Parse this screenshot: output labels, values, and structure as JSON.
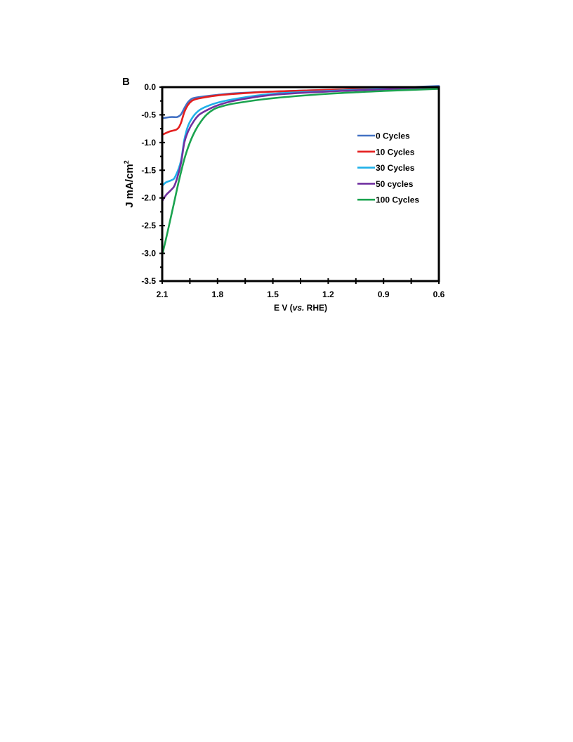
{
  "panel_label": "B",
  "chart_data": {
    "type": "line",
    "title": "",
    "xlabel": "E  V (vs. RHE)",
    "xlabel_parts": {
      "pre": "E  V (",
      "italic": "vs.",
      "post": " RHE)"
    },
    "ylabel": "J mA/cm²",
    "ylabel_parts": {
      "main": "J mA/cm",
      "sup": "2"
    },
    "x_reversed": true,
    "xlim": [
      2.1,
      0.6
    ],
    "ylim": [
      -3.5,
      0.0
    ],
    "x_ticks": [
      "2.1",
      "1.8",
      "1.5",
      "1.2",
      "0.9",
      "0.6"
    ],
    "y_ticks": [
      "0.0",
      "-0.5",
      "-1.0",
      "-1.5",
      "-2.0",
      "-2.5",
      "-3.0",
      "-3.5"
    ],
    "legend_position": "right",
    "series": [
      {
        "name": "0 Cycles",
        "color": "#4472C4",
        "x": [
          2.1,
          2.05,
          2.02,
          2.0,
          1.98,
          1.96,
          1.94,
          1.92,
          1.88,
          1.8,
          1.7,
          1.5,
          1.2,
          0.9,
          0.6
        ],
        "y": [
          -0.56,
          -0.54,
          -0.54,
          -0.5,
          -0.38,
          -0.27,
          -0.21,
          -0.19,
          -0.17,
          -0.14,
          -0.11,
          -0.08,
          -0.05,
          -0.02,
          0.02
        ]
      },
      {
        "name": "10 Cycles",
        "color": "#E41F1F",
        "x": [
          2.1,
          2.06,
          2.02,
          2.0,
          1.98,
          1.96,
          1.94,
          1.92,
          1.88,
          1.8,
          1.7,
          1.5,
          1.2,
          0.9,
          0.6
        ],
        "y": [
          -0.86,
          -0.8,
          -0.76,
          -0.66,
          -0.45,
          -0.32,
          -0.25,
          -0.22,
          -0.19,
          -0.15,
          -0.12,
          -0.08,
          -0.05,
          -0.02,
          0.0
        ]
      },
      {
        "name": "30 Cycles",
        "color": "#1FB0E8",
        "x": [
          2.1,
          2.08,
          2.05,
          2.03,
          2.0,
          1.98,
          1.96,
          1.93,
          1.9,
          1.86,
          1.8,
          1.7,
          1.5,
          1.2,
          0.9,
          0.6
        ],
        "y": [
          -1.78,
          -1.72,
          -1.68,
          -1.62,
          -1.35,
          -0.95,
          -0.7,
          -0.52,
          -0.42,
          -0.35,
          -0.28,
          -0.21,
          -0.12,
          -0.07,
          -0.03,
          0.0
        ]
      },
      {
        "name": "50 cycles",
        "color": "#7030A0",
        "x": [
          2.1,
          2.08,
          2.05,
          2.03,
          2.0,
          1.98,
          1.96,
          1.93,
          1.9,
          1.86,
          1.8,
          1.7,
          1.5,
          1.2,
          0.9,
          0.6
        ],
        "y": [
          -2.06,
          -1.95,
          -1.85,
          -1.75,
          -1.4,
          -1.0,
          -0.8,
          -0.62,
          -0.5,
          -0.42,
          -0.33,
          -0.24,
          -0.14,
          -0.08,
          -0.04,
          0.0
        ]
      },
      {
        "name": "100 Cycles",
        "color": "#1BA34F",
        "x": [
          2.1,
          2.07,
          2.04,
          2.01,
          1.98,
          1.95,
          1.92,
          1.89,
          1.86,
          1.82,
          1.78,
          1.7,
          1.5,
          1.2,
          0.9,
          0.6
        ],
        "y": [
          -3.03,
          -2.6,
          -2.15,
          -1.7,
          -1.3,
          -1.0,
          -0.78,
          -0.62,
          -0.5,
          -0.4,
          -0.35,
          -0.29,
          -0.2,
          -0.12,
          -0.07,
          -0.03
        ]
      }
    ]
  }
}
